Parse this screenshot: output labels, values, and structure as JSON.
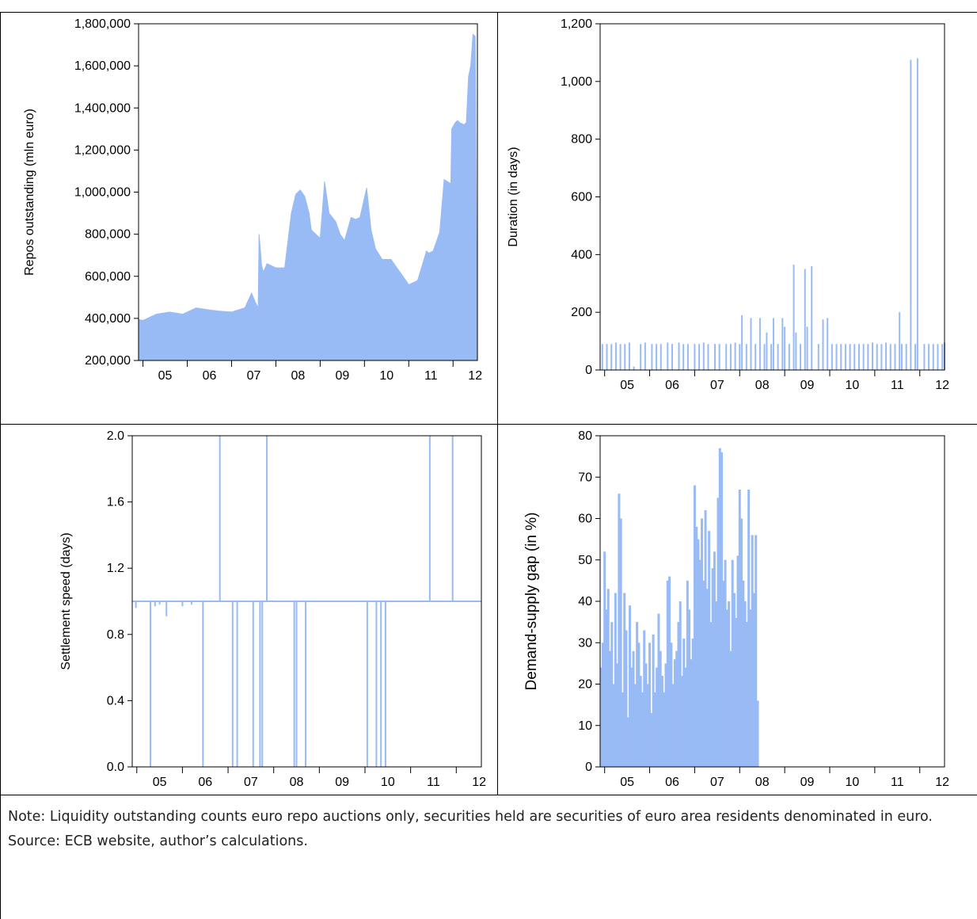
{
  "colors": {
    "series": "#99bbf5",
    "axis": "#000000",
    "border": "#000000"
  },
  "note": "Note: Liquidity outstanding counts euro repo auctions only, securities held are securities of euro area residents denominated in euro. Source: ECB website, author’s calculations.",
  "chart_data": [
    {
      "type": "area",
      "ylabel": "Repos outstanding (mln euro)",
      "ylim": [
        200000,
        1800000
      ],
      "yticks": [
        200000,
        400000,
        600000,
        800000,
        1000000,
        1200000,
        1400000,
        1600000,
        1800000
      ],
      "ytick_labels": [
        "200,000",
        "400,000",
        "600,000",
        "800,000",
        "1,000,000",
        "1,200,000",
        "1,400,000",
        "1,600,000",
        "1,800,000"
      ],
      "xlim": [
        2004.9,
        2012.55
      ],
      "xtick_labels": [
        "05",
        "06",
        "07",
        "08",
        "09",
        "10",
        "11",
        "12"
      ],
      "grid": false,
      "series": [
        {
          "x": [
            2004.9,
            2005.0,
            2005.3,
            2005.6,
            2005.9,
            2006.2,
            2006.5,
            2006.7,
            2007.0,
            2007.3,
            2007.45,
            2007.55,
            2007.6,
            2007.62,
            2007.68,
            2007.72,
            2007.8,
            2008.0,
            2008.2,
            2008.35,
            2008.45,
            2008.55,
            2008.65,
            2008.75,
            2008.8,
            2008.9,
            2009.0,
            2009.1,
            2009.2,
            2009.35,
            2009.45,
            2009.55,
            2009.7,
            2009.8,
            2009.9,
            2010.05,
            2010.15,
            2010.25,
            2010.4,
            2010.6,
            2010.8,
            2011.0,
            2011.2,
            2011.4,
            2011.45,
            2011.55,
            2011.7,
            2011.8,
            2011.95,
            2011.97,
            2012.05,
            2012.1,
            2012.15,
            2012.25,
            2012.3,
            2012.35,
            2012.4,
            2012.45,
            2012.5,
            2012.55
          ],
          "values": [
            395000,
            390000,
            420000,
            430000,
            420000,
            450000,
            440000,
            435000,
            430000,
            450000,
            520000,
            470000,
            450000,
            800000,
            650000,
            620000,
            660000,
            640000,
            640000,
            900000,
            990000,
            1010000,
            980000,
            900000,
            820000,
            800000,
            780000,
            1050000,
            900000,
            860000,
            800000,
            770000,
            880000,
            870000,
            880000,
            1020000,
            820000,
            730000,
            680000,
            680000,
            620000,
            560000,
            580000,
            720000,
            710000,
            720000,
            810000,
            1060000,
            1040000,
            1300000,
            1330000,
            1340000,
            1330000,
            1320000,
            1330000,
            1550000,
            1600000,
            1750000,
            1740000,
            200000
          ]
        }
      ]
    },
    {
      "type": "bar",
      "ylabel": "Duration (in days)",
      "ylim": [
        0,
        1200
      ],
      "yticks": [
        0,
        200,
        400,
        600,
        800,
        1000,
        1200
      ],
      "ytick_labels": [
        "0",
        "200",
        "400",
        "600",
        "800",
        "1,000",
        "1,200"
      ],
      "xlim": [
        2004.9,
        2012.55
      ],
      "xtick_labels": [
        "05",
        "06",
        "07",
        "08",
        "09",
        "10",
        "11",
        "12"
      ],
      "grid": false,
      "series": [
        {
          "x": [
            2004.95,
            2005.05,
            2005.15,
            2005.25,
            2005.35,
            2005.45,
            2005.55,
            2005.65,
            2005.8,
            2005.9,
            2006.05,
            2006.15,
            2006.25,
            2006.4,
            2006.5,
            2006.65,
            2006.75,
            2006.85,
            2007.0,
            2007.1,
            2007.2,
            2007.3,
            2007.45,
            2007.55,
            2007.7,
            2007.8,
            2007.9,
            2008.0,
            2008.05,
            2008.15,
            2008.25,
            2008.35,
            2008.45,
            2008.55,
            2008.6,
            2008.7,
            2008.75,
            2008.85,
            2008.95,
            2009.0,
            2009.1,
            2009.2,
            2009.25,
            2009.35,
            2009.45,
            2009.5,
            2009.6,
            2009.75,
            2009.85,
            2009.95,
            2010.05,
            2010.15,
            2010.25,
            2010.35,
            2010.45,
            2010.55,
            2010.65,
            2010.75,
            2010.85,
            2010.95,
            2011.05,
            2011.15,
            2011.25,
            2011.35,
            2011.45,
            2011.55,
            2011.6,
            2011.7,
            2011.8,
            2011.9,
            2011.95,
            2012.1,
            2012.2,
            2012.3,
            2012.4,
            2012.5,
            2012.55
          ],
          "values": [
            90,
            90,
            90,
            95,
            90,
            90,
            95,
            12,
            90,
            95,
            90,
            90,
            90,
            95,
            90,
            95,
            90,
            90,
            90,
            90,
            95,
            90,
            90,
            90,
            90,
            90,
            95,
            90,
            190,
            90,
            180,
            90,
            180,
            90,
            130,
            90,
            180,
            90,
            180,
            150,
            90,
            365,
            130,
            90,
            350,
            150,
            360,
            90,
            175,
            180,
            90,
            90,
            90,
            90,
            90,
            90,
            90,
            90,
            90,
            95,
            90,
            90,
            95,
            90,
            90,
            200,
            90,
            90,
            1075,
            90,
            1080,
            90,
            90,
            90,
            90,
            90,
            95
          ]
        }
      ]
    },
    {
      "type": "bar",
      "ylabel": "Settlement speed (days)",
      "ylim": [
        0,
        2
      ],
      "yticks": [
        0,
        0.4,
        0.8,
        1.2,
        1.6,
        2.0
      ],
      "ytick_labels": [
        "0.0",
        "0.4",
        "0.8",
        "1.2",
        "1.6",
        "2.0"
      ],
      "xlim": [
        2004.9,
        2012.55
      ],
      "xtick_labels": [
        "05",
        "06",
        "07",
        "08",
        "09",
        "10",
        "11",
        "12"
      ],
      "grid": false,
      "baseline": 1.0,
      "series": [
        {
          "x": [
            2004.98,
            2005.3,
            2005.4,
            2005.5,
            2005.65,
            2006.0,
            2006.2,
            2006.45,
            2006.82,
            2007.1,
            2007.2,
            2007.55,
            2007.7,
            2007.75,
            2007.85,
            2008.45,
            2008.5,
            2008.7,
            2010.05,
            2010.25,
            2010.35,
            2010.45,
            2011.42,
            2011.92
          ],
          "values": [
            0.96,
            0,
            0.97,
            0.98,
            0.91,
            0.97,
            0.98,
            0,
            2.0,
            0,
            0,
            0,
            0,
            0,
            2.0,
            0,
            0,
            0,
            0,
            0,
            0,
            0,
            2.0,
            2.0
          ]
        }
      ]
    },
    {
      "type": "bar",
      "ylabel": "Demand-supply gap (in %)",
      "ylim": [
        0,
        80
      ],
      "yticks": [
        0,
        10,
        20,
        30,
        40,
        50,
        60,
        70,
        80
      ],
      "ytick_labels": [
        "0",
        "10",
        "20",
        "30",
        "40",
        "50",
        "60",
        "70",
        "80"
      ],
      "xlim": [
        2004.9,
        2012.55
      ],
      "xtick_labels": [
        "05",
        "06",
        "07",
        "08",
        "09",
        "10",
        "11",
        "12"
      ],
      "grid": false,
      "series": [
        {
          "x": [
            2004.92,
            2004.96,
            2005.0,
            2005.04,
            2005.08,
            2005.12,
            2005.16,
            2005.2,
            2005.24,
            2005.28,
            2005.32,
            2005.36,
            2005.4,
            2005.44,
            2005.48,
            2005.52,
            2005.56,
            2005.6,
            2005.64,
            2005.68,
            2005.72,
            2005.76,
            2005.8,
            2005.84,
            2005.88,
            2005.92,
            2005.96,
            2006.0,
            2006.04,
            2006.08,
            2006.12,
            2006.16,
            2006.2,
            2006.24,
            2006.28,
            2006.32,
            2006.36,
            2006.4,
            2006.44,
            2006.48,
            2006.52,
            2006.56,
            2006.6,
            2006.64,
            2006.68,
            2006.72,
            2006.76,
            2006.8,
            2006.84,
            2006.88,
            2006.92,
            2006.96,
            2007.0,
            2007.04,
            2007.08,
            2007.12,
            2007.16,
            2007.2,
            2007.24,
            2007.28,
            2007.32,
            2007.36,
            2007.4,
            2007.44,
            2007.48,
            2007.52,
            2007.56,
            2007.6,
            2007.64,
            2007.68,
            2007.72,
            2007.76,
            2007.8,
            2007.84,
            2007.88,
            2007.92,
            2007.96,
            2008.0,
            2008.04,
            2008.08,
            2008.12,
            2008.16,
            2008.2,
            2008.24,
            2008.28,
            2008.32,
            2008.36,
            2008.4
          ],
          "values": [
            24,
            30,
            52,
            38,
            43,
            28,
            35,
            20,
            42,
            25,
            66,
            60,
            18,
            42,
            33,
            12,
            39,
            24,
            28,
            20,
            35,
            30,
            22,
            18,
            33,
            25,
            20,
            30,
            13,
            32,
            18,
            24,
            37,
            28,
            22,
            18,
            25,
            45,
            46,
            30,
            20,
            26,
            28,
            35,
            40,
            22,
            31,
            24,
            45,
            38,
            26,
            31,
            68,
            58,
            55,
            50,
            60,
            45,
            62,
            43,
            57,
            35,
            48,
            52,
            40,
            65,
            77,
            76,
            45,
            50,
            38,
            40,
            28,
            50,
            42,
            36,
            51,
            67,
            60,
            45,
            40,
            35,
            67,
            38,
            56,
            42,
            56,
            16
          ]
        }
      ]
    }
  ]
}
